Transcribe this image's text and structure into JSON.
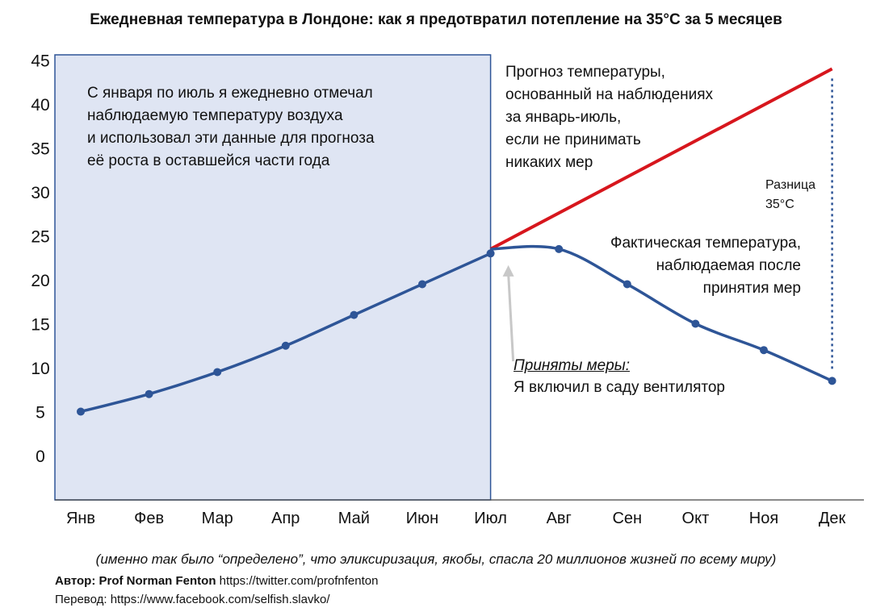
{
  "chart_data": {
    "type": "line",
    "title": "Ежедневная температура в Лондоне: как я предотвратил потепление на 35°C за 5 месяцев",
    "categories": [
      "Янв",
      "Фев",
      "Мар",
      "Апр",
      "Май",
      "Июн",
      "Июл",
      "Авг",
      "Сен",
      "Окт",
      "Ноя",
      "Дек"
    ],
    "ylim": [
      -5,
      45
    ],
    "yticks": [
      0,
      5,
      10,
      15,
      20,
      25,
      30,
      35,
      40,
      45
    ],
    "grid": false,
    "observed": {
      "x": [
        "Янв",
        "Фев",
        "Мар",
        "Апр",
        "Май",
        "Июн",
        "Июл"
      ],
      "values": [
        5,
        7,
        9.5,
        12.5,
        16,
        19.5,
        23
      ]
    },
    "forecast": {
      "x": [
        "Июл",
        "Дек"
      ],
      "values": [
        23.5,
        44
      ],
      "color": "#d7161d"
    },
    "actual": {
      "x": [
        "Июл",
        "Авг",
        "Сен",
        "Окт",
        "Ноя",
        "Дек"
      ],
      "values": [
        23.5,
        23.5,
        19.5,
        15,
        12,
        8.5
      ],
      "marked": [
        "Авг",
        "Сен",
        "Окт",
        "Ноя",
        "Дек"
      ],
      "color": "#2e5597"
    },
    "shaded_region": {
      "from": "Янв",
      "to": "Июл",
      "fill": "#dfe5f3",
      "border": "#2e5597"
    },
    "annotations": {
      "box_note": [
        "С января по июль я ежедневно отмечал",
        "наблюдаемую температуру воздуха",
        "и использовал эти данные для прогноза",
        "её роста в оставшейся части года"
      ],
      "forecast_note": [
        "Прогноз температуры,",
        "основанный на наблюдениях",
        "за январь-июль,",
        "если не принимать",
        "никаких мер"
      ],
      "actual_note": [
        "Фактическая температура,",
        "наблюдаемая после",
        "принятия мер"
      ],
      "difference_note": [
        "Разница",
        "35°C"
      ],
      "action_head": "Приняты меры:",
      "action_text": "Я включил в саду вентилятор"
    }
  },
  "footer": {
    "italic_note": "(именно так было “определено”, что эликсиризация, якобы, спасла 20 миллионов жизней по всему миру)",
    "author_label": "Автор: Prof Norman Fenton",
    "author_link": " https://twitter.com/profnfenton",
    "translation": "Перевод: https://www.facebook.com/selfish.slavko/"
  }
}
